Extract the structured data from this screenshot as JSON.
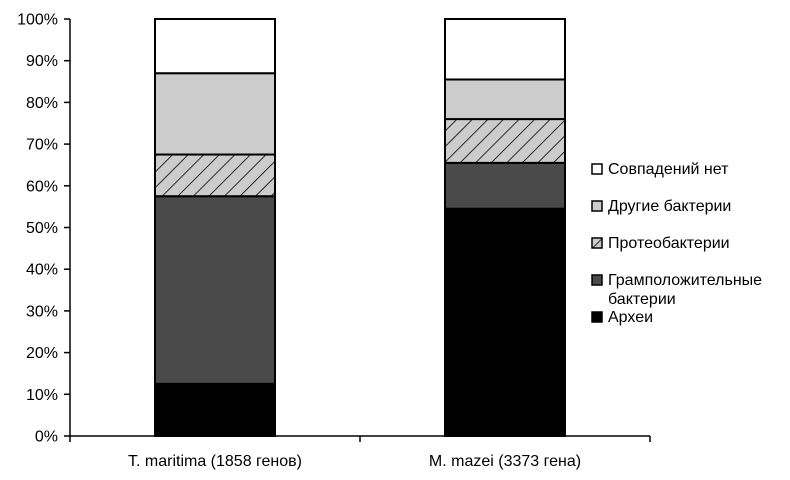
{
  "chart_data": {
    "type": "bar",
    "stacked": true,
    "categories": [
      "T. maritima (1858 генов)",
      "M. mazei (3373 гена)"
    ],
    "series": [
      {
        "name": "Археи",
        "values": [
          12.5,
          54.5
        ],
        "color": "#000000",
        "pattern": "solid"
      },
      {
        "name": "Грамположительные бактерии",
        "name_lines": [
          "Грамположительные",
          "бактерии"
        ],
        "values": [
          45.0,
          11.0
        ],
        "color": "#4a4a4a",
        "pattern": "solid"
      },
      {
        "name": "Протеобактерии",
        "values": [
          10.0,
          10.5
        ],
        "color": "#cccccc",
        "pattern": "hatch"
      },
      {
        "name": "Другие бактерии",
        "values": [
          19.5,
          9.5
        ],
        "color": "#cccccc",
        "pattern": "solid"
      },
      {
        "name": "Совпадений нет",
        "values": [
          13.0,
          14.5
        ],
        "color": "#ffffff",
        "pattern": "solid"
      }
    ],
    "ylim": [
      0,
      100
    ],
    "yticks": [
      "0%",
      "10%",
      "20%",
      "30%",
      "40%",
      "50%",
      "60%",
      "70%",
      "80%",
      "90%",
      "100%"
    ],
    "legend_order": [
      "Совпадений нет",
      "Другие бактерии",
      "Протеобактерии",
      "Грамположительные бактерии",
      "Археи"
    ],
    "legend_position": "right",
    "grid": false,
    "title": "",
    "xlabel": "",
    "ylabel": ""
  }
}
